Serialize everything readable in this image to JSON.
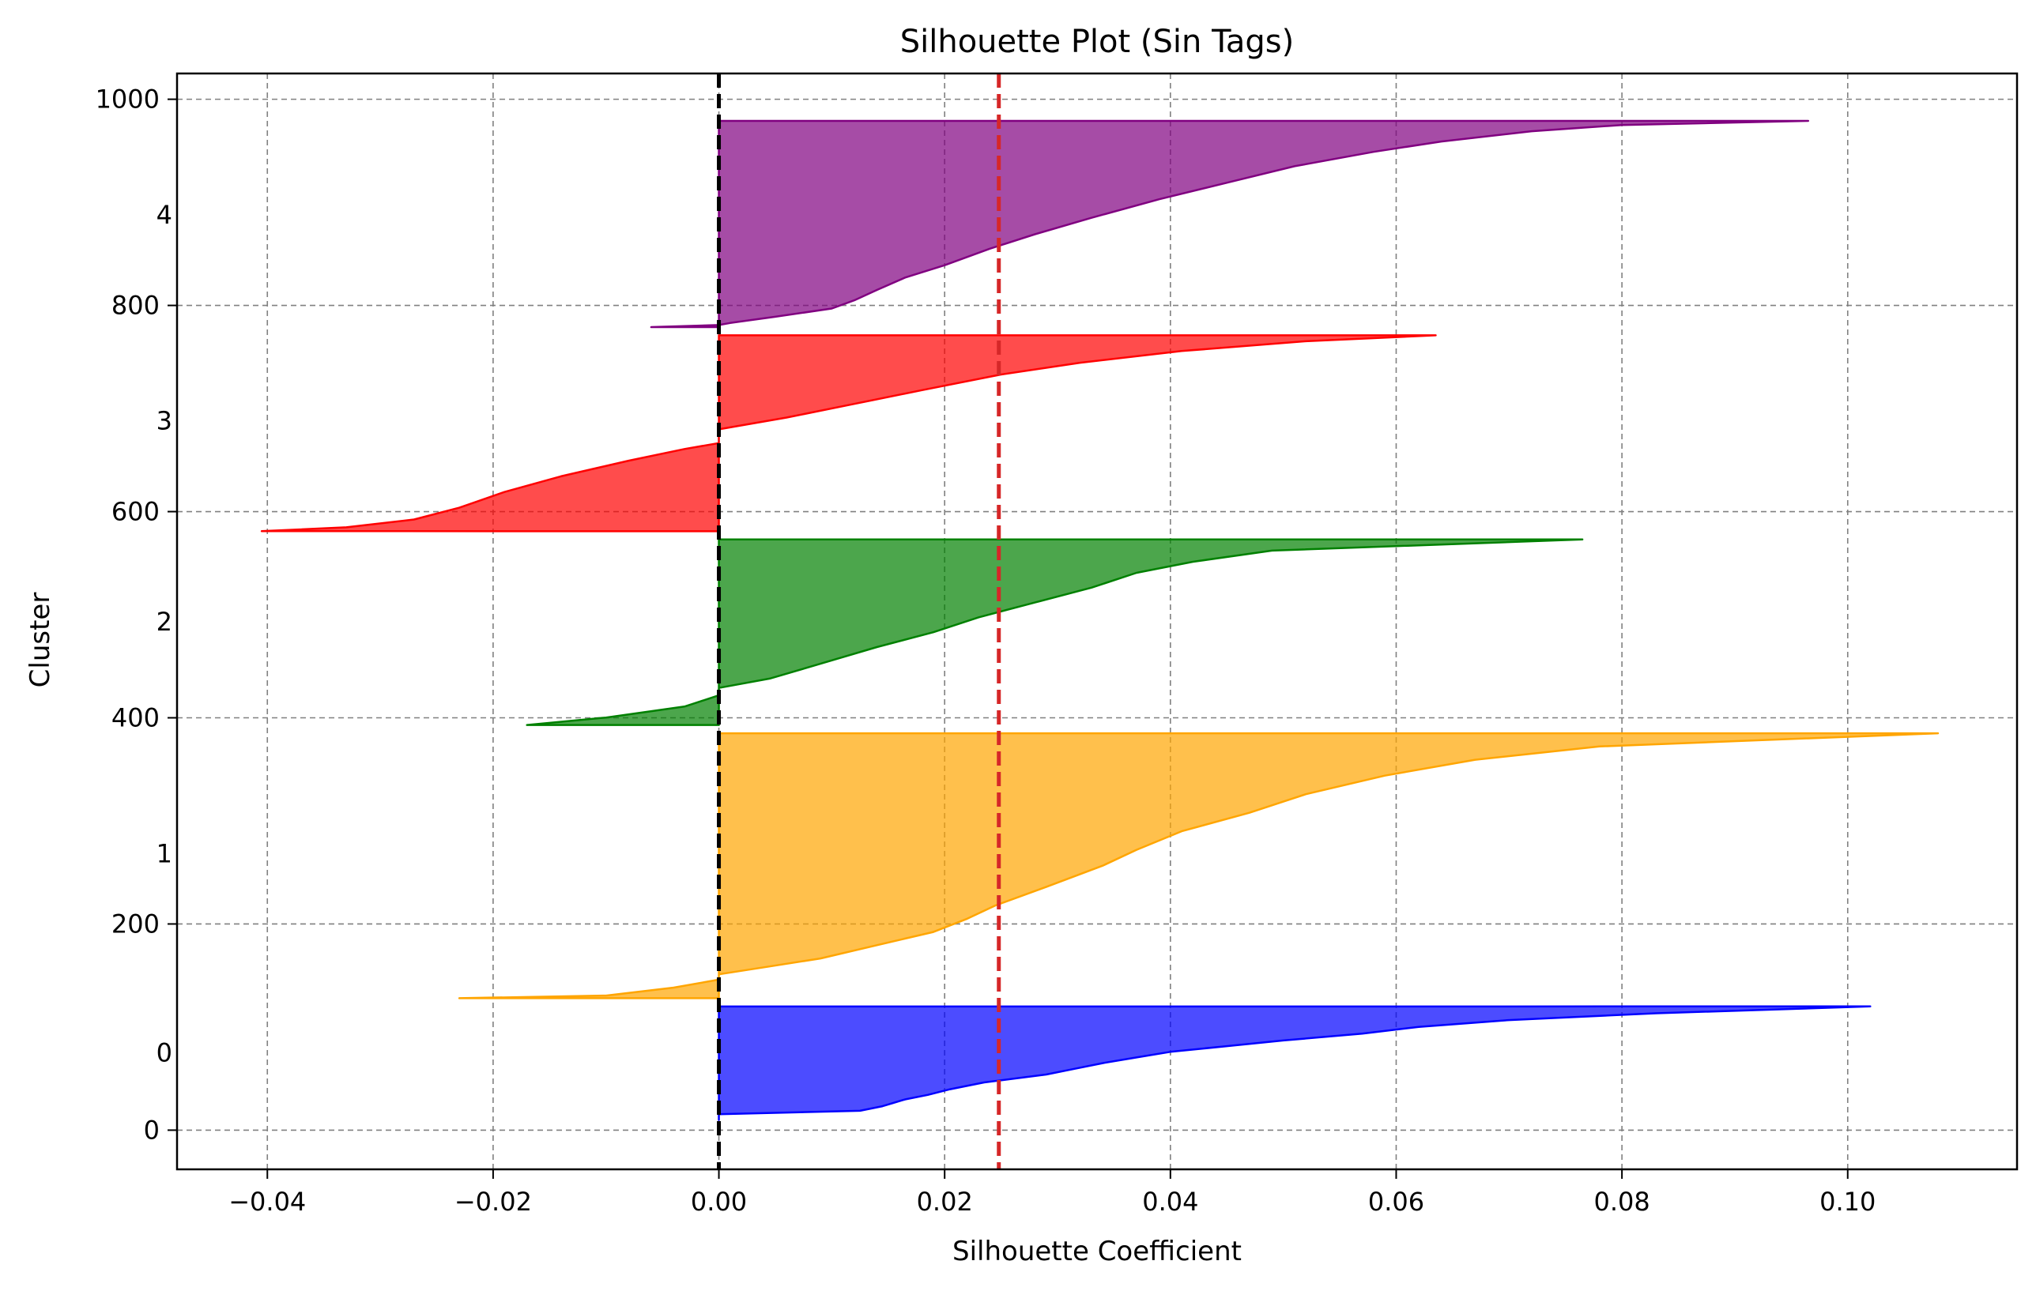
{
  "chart_data": {
    "type": "area",
    "title": "Silhouette Plot (Sin Tags)",
    "xlabel": "Silhouette Coefficient",
    "ylabel": "Cluster",
    "xlim": [
      -0.048,
      0.115
    ],
    "ylim": [
      -38,
      1025
    ],
    "x_ticks": [
      -0.04,
      -0.02,
      0.0,
      0.02,
      0.04,
      0.06,
      0.08,
      0.1
    ],
    "x_tick_labels": [
      "−0.04",
      "−0.02",
      "0.00",
      "0.02",
      "0.04",
      "0.06",
      "0.08",
      "0.10"
    ],
    "y_ticks": [
      0,
      200,
      400,
      600,
      800,
      1000
    ],
    "y_tick_labels": [
      "0",
      "200",
      "400",
      "600",
      "800",
      "1000"
    ],
    "grid": true,
    "reference_lines": [
      {
        "name": "zero",
        "x": 0.0,
        "color": "#000000"
      },
      {
        "name": "average silhouette",
        "x": 0.0248,
        "color": "#d62728"
      }
    ],
    "series": [
      {
        "name": "0",
        "label_y": 75,
        "color": "#0000ff",
        "y_range": [
          10,
          120
        ],
        "profile": [
          [
            0,
            0.0
          ],
          [
            0.05,
            0.0
          ],
          [
            0.08,
            0.0125
          ],
          [
            0.12,
            0.0145
          ],
          [
            0.18,
            0.0165
          ],
          [
            0.22,
            0.0185
          ],
          [
            0.27,
            0.0205
          ],
          [
            0.33,
            0.0235
          ],
          [
            0.4,
            0.029
          ],
          [
            0.45,
            0.0315
          ],
          [
            0.5,
            0.034
          ],
          [
            0.55,
            0.037
          ],
          [
            0.6,
            0.04
          ],
          [
            0.65,
            0.045
          ],
          [
            0.7,
            0.05
          ],
          [
            0.76,
            0.057
          ],
          [
            0.82,
            0.062
          ],
          [
            0.88,
            0.07
          ],
          [
            0.94,
            0.083
          ],
          [
            1.0,
            0.102
          ]
        ]
      },
      {
        "name": "1",
        "label_y": 268,
        "color": "#ffa500",
        "y_range": [
          128,
          385
        ],
        "profile": [
          [
            0,
            -0.023
          ],
          [
            0.01,
            -0.01
          ],
          [
            0.04,
            -0.004
          ],
          [
            0.07,
            0.0
          ],
          [
            0.09,
            0.0
          ],
          [
            0.12,
            0.0045
          ],
          [
            0.15,
            0.009
          ],
          [
            0.2,
            0.014
          ],
          [
            0.25,
            0.019
          ],
          [
            0.3,
            0.022
          ],
          [
            0.35,
            0.0245
          ],
          [
            0.42,
            0.029
          ],
          [
            0.5,
            0.034
          ],
          [
            0.56,
            0.037
          ],
          [
            0.63,
            0.041
          ],
          [
            0.7,
            0.047
          ],
          [
            0.77,
            0.052
          ],
          [
            0.84,
            0.059
          ],
          [
            0.9,
            0.067
          ],
          [
            0.95,
            0.078
          ],
          [
            1.0,
            0.108
          ]
        ]
      },
      {
        "name": "2",
        "label_y": 493,
        "color": "#008000",
        "y_range": [
          393,
          573
        ],
        "profile": [
          [
            0,
            -0.017
          ],
          [
            0.04,
            -0.01
          ],
          [
            0.1,
            -0.003
          ],
          [
            0.16,
            0.0
          ],
          [
            0.2,
            0.0
          ],
          [
            0.25,
            0.0045
          ],
          [
            0.33,
            0.009
          ],
          [
            0.42,
            0.014
          ],
          [
            0.5,
            0.019
          ],
          [
            0.58,
            0.023
          ],
          [
            0.66,
            0.028
          ],
          [
            0.74,
            0.033
          ],
          [
            0.82,
            0.037
          ],
          [
            0.88,
            0.042
          ],
          [
            0.94,
            0.049
          ],
          [
            1.0,
            0.0765
          ]
        ]
      },
      {
        "name": "3",
        "label_y": 688,
        "color": "#ff0000",
        "y_range": [
          581,
          771
        ],
        "profile": [
          [
            0,
            -0.0405
          ],
          [
            0.02,
            -0.033
          ],
          [
            0.06,
            -0.027
          ],
          [
            0.12,
            -0.023
          ],
          [
            0.2,
            -0.019
          ],
          [
            0.28,
            -0.014
          ],
          [
            0.36,
            -0.008
          ],
          [
            0.42,
            -0.003
          ],
          [
            0.45,
            0.0
          ],
          [
            0.52,
            0.0
          ],
          [
            0.58,
            0.006
          ],
          [
            0.65,
            0.012
          ],
          [
            0.72,
            0.018
          ],
          [
            0.8,
            0.025
          ],
          [
            0.86,
            0.032
          ],
          [
            0.92,
            0.041
          ],
          [
            0.97,
            0.052
          ],
          [
            1.0,
            0.0635
          ]
        ]
      },
      {
        "name": "4",
        "label_y": 888,
        "color": "#800080",
        "y_range": [
          779,
          979
        ],
        "profile": [
          [
            0,
            -0.006
          ],
          [
            0.01,
            0.0
          ],
          [
            0.02,
            0.001
          ],
          [
            0.05,
            0.005
          ],
          [
            0.09,
            0.01
          ],
          [
            0.13,
            0.012
          ],
          [
            0.18,
            0.014
          ],
          [
            0.24,
            0.0165
          ],
          [
            0.3,
            0.02
          ],
          [
            0.38,
            0.024
          ],
          [
            0.45,
            0.028
          ],
          [
            0.53,
            0.033
          ],
          [
            0.62,
            0.039
          ],
          [
            0.7,
            0.045
          ],
          [
            0.78,
            0.051
          ],
          [
            0.85,
            0.058
          ],
          [
            0.9,
            0.064
          ],
          [
            0.95,
            0.072
          ],
          [
            0.98,
            0.08
          ],
          [
            1.0,
            0.0965
          ]
        ]
      }
    ]
  }
}
